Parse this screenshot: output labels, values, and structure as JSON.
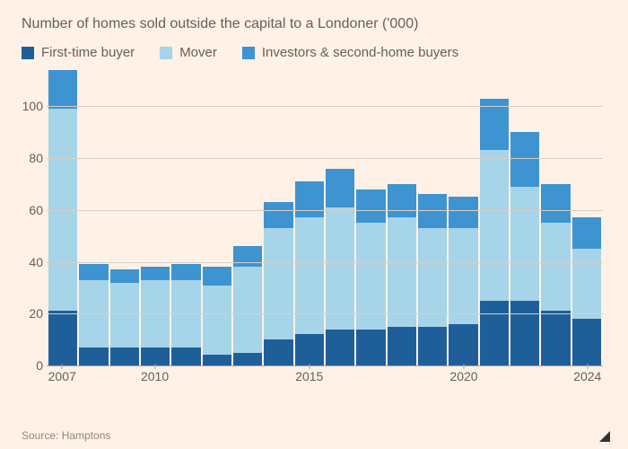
{
  "subtitle": "Number of homes sold outside the capital to a Londoner ('000)",
  "legend": [
    {
      "label": "First-time buyer",
      "color": "#1f5f99"
    },
    {
      "label": "Mover",
      "color": "#a6d4e8"
    },
    {
      "label": "Investors & second-home buyers",
      "color": "#3d94d1"
    }
  ],
  "chart": {
    "type": "stacked-bar",
    "background_color": "#fff1e5",
    "grid_color": "#d9cfc6",
    "axis_color": "#b3a99f",
    "text_color": "#66605c",
    "source": "Source: Hamptons",
    "y_axis": {
      "min": 0,
      "max": 115,
      "ticks": [
        0,
        20,
        40,
        60,
        80,
        100
      ]
    },
    "x_axis": {
      "years": [
        2007,
        2008,
        2009,
        2010,
        2011,
        2012,
        2013,
        2014,
        2015,
        2016,
        2017,
        2018,
        2019,
        2020,
        2021,
        2022,
        2023,
        2024
      ],
      "tick_labels": [
        2007,
        2010,
        2015,
        2020,
        2024
      ]
    },
    "series": [
      {
        "name": "First-time buyer",
        "color": "#1f5f99",
        "values": [
          21,
          7,
          7,
          7,
          7,
          4,
          5,
          10,
          12,
          14,
          14,
          15,
          15,
          16,
          25,
          25,
          21,
          18
        ]
      },
      {
        "name": "Mover",
        "color": "#a6d4e8",
        "values": [
          78,
          26,
          25,
          26,
          26,
          27,
          33,
          43,
          45,
          47,
          41,
          42,
          38,
          37,
          58,
          44,
          34,
          27
        ]
      },
      {
        "name": "Investors & second-home buyers",
        "color": "#3d94d1",
        "values": [
          15,
          6,
          5,
          5,
          6,
          7,
          8,
          10,
          14,
          15,
          13,
          13,
          13,
          12,
          20,
          21,
          15,
          12
        ]
      }
    ]
  }
}
